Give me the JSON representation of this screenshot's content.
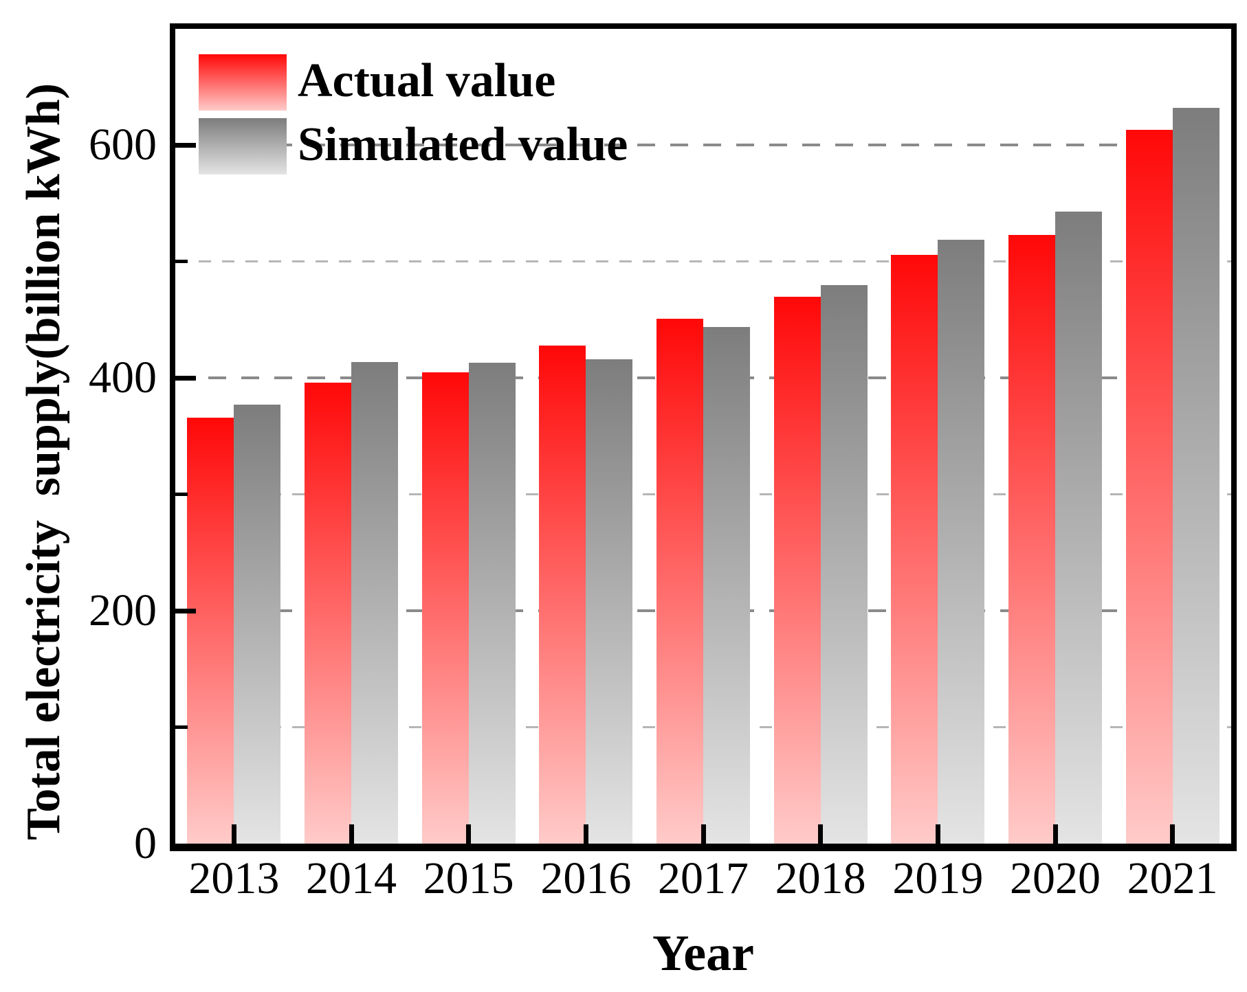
{
  "figure": {
    "background": "#ffffff",
    "axis_color": "#000000",
    "grid_major_color": "#8a8a8a",
    "grid_minor_color": "#b6b6b6"
  },
  "chart_data": {
    "type": "bar",
    "title": "",
    "categories": [
      "2013",
      "2014",
      "2015",
      "2016",
      "2017",
      "2018",
      "2019",
      "2020",
      "2021"
    ],
    "series": [
      {
        "name": "Actual value",
        "color_top": "#ff0808",
        "color_bottom": "#ffcbc9",
        "values": [
          366,
          396,
          405,
          428,
          451,
          470,
          506,
          523,
          613
        ]
      },
      {
        "name": "Simulated value",
        "color_top": "#7d7d7d",
        "color_bottom": "#e4e4e4",
        "values": [
          377,
          414,
          413,
          416,
          444,
          480,
          519,
          543,
          632
        ]
      }
    ],
    "xlabel": "Year",
    "ylabel": "Total electricity  supply(billion kWh)",
    "ylim": [
      0,
      700
    ],
    "yticks": [
      0,
      200,
      400,
      600
    ],
    "grid_major": [
      200,
      400,
      600
    ],
    "grid_minor": [
      100,
      300,
      500
    ],
    "grid_style": "dashed",
    "legend_position": "top-left",
    "tick_direction": "in"
  }
}
